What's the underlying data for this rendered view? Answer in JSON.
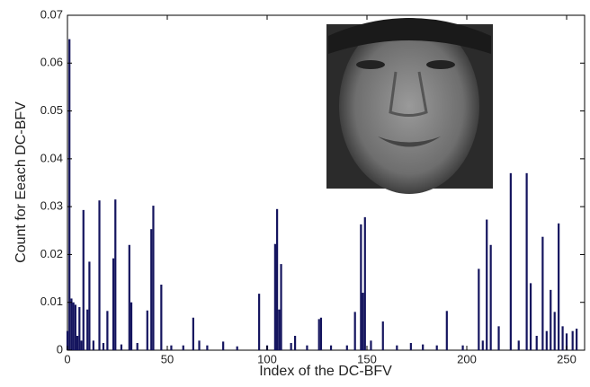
{
  "chart_data": {
    "type": "bar",
    "x_label": "Index of the DC-BFV",
    "y_label": "Count for Eeach DC-BFV",
    "x": [
      0,
      1,
      2,
      3,
      4,
      5,
      6,
      7,
      8,
      10,
      11,
      13,
      16,
      18,
      20,
      23,
      24,
      27,
      31,
      32,
      35,
      40,
      42,
      43,
      47,
      52,
      58,
      63,
      66,
      70,
      78,
      85,
      96,
      100,
      104,
      105,
      106,
      107,
      112,
      114,
      120,
      126,
      127,
      132,
      140,
      144,
      147,
      148,
      149,
      152,
      158,
      165,
      172,
      178,
      185,
      190,
      198,
      206,
      208,
      210,
      212,
      216,
      222,
      226,
      230,
      232,
      235,
      238,
      240,
      242,
      244,
      246,
      248,
      250,
      253,
      255
    ],
    "values": [
      0.004,
      0.065,
      0.0108,
      0.01,
      0.0095,
      0.003,
      0.009,
      0.002,
      0.0293,
      0.0085,
      0.0185,
      0.002,
      0.0313,
      0.0015,
      0.0082,
      0.0192,
      0.0315,
      0.0012,
      0.022,
      0.01,
      0.0015,
      0.0083,
      0.0253,
      0.0302,
      0.0137,
      0.001,
      0.001,
      0.0068,
      0.002,
      0.001,
      0.0018,
      0.0008,
      0.0118,
      0.001,
      0.0222,
      0.0295,
      0.0085,
      0.018,
      0.0015,
      0.003,
      0.001,
      0.0065,
      0.0068,
      0.001,
      0.001,
      0.008,
      0.0263,
      0.012,
      0.0278,
      0.002,
      0.006,
      0.001,
      0.0015,
      0.0012,
      0.001,
      0.0082,
      0.001,
      0.017,
      0.002,
      0.0273,
      0.022,
      0.005,
      0.037,
      0.002,
      0.037,
      0.014,
      0.003,
      0.0237,
      0.004,
      0.0126,
      0.008,
      0.0265,
      0.005,
      0.0035,
      0.004,
      0.0045
    ],
    "color": "#14145e",
    "xlim": [
      0,
      259
    ],
    "xticks": [
      0,
      50,
      100,
      150,
      200,
      250
    ],
    "ylim": [
      0,
      0.07
    ],
    "yticks": [
      0,
      0.01,
      0.02,
      0.03,
      0.04,
      0.05,
      0.06,
      0.07
    ]
  }
}
